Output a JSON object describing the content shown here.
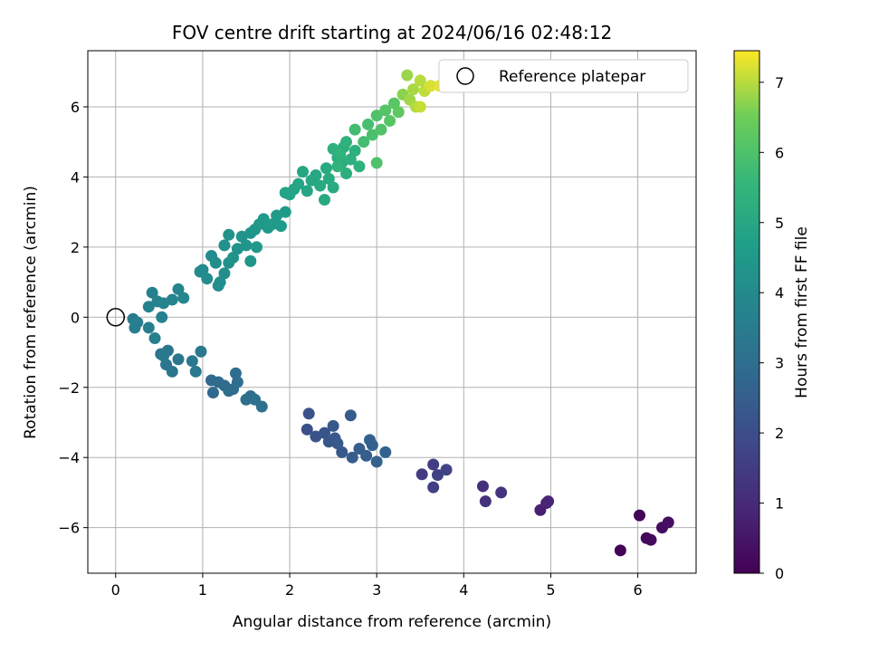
{
  "chart_data": {
    "type": "scatter",
    "title": "FOV centre drift starting at 2024/06/16 02:48:12",
    "xlabel": "Angular distance from reference (arcmin)",
    "ylabel": "Rotation from reference (arcmin)",
    "xlim": [
      -0.32,
      6.67
    ],
    "ylim": [
      -7.3,
      7.6
    ],
    "xticks": [
      0,
      1,
      2,
      3,
      4,
      5,
      6
    ],
    "yticks": [
      -6,
      -4,
      -2,
      0,
      2,
      4,
      6
    ],
    "grid": true,
    "colormap": "viridis",
    "colorbar": {
      "label": "Hours from first FF file",
      "range": [
        0,
        7.45
      ],
      "ticks": [
        0,
        1,
        2,
        3,
        4,
        5,
        6,
        7
      ]
    },
    "reference_point": {
      "label": "Reference platepar",
      "x": 0,
      "y": 0
    },
    "legend": {
      "position": "top-right",
      "entries": [
        "Reference platepar"
      ]
    },
    "series": [
      {
        "points": [
          [
            5.8,
            -6.65,
            0.05
          ],
          [
            6.02,
            -5.65,
            0.12
          ],
          [
            6.1,
            -6.3,
            0.18
          ],
          [
            6.15,
            -6.35,
            0.22
          ],
          [
            6.28,
            -6.0,
            0.28
          ],
          [
            6.35,
            -5.85,
            0.32
          ],
          [
            4.88,
            -5.5,
            0.75
          ],
          [
            4.95,
            -5.3,
            0.8
          ],
          [
            4.97,
            -5.25,
            0.85
          ],
          [
            4.22,
            -4.82,
            1.15
          ],
          [
            4.25,
            -5.25,
            1.2
          ],
          [
            4.43,
            -5.0,
            1.25
          ],
          [
            3.52,
            -4.48,
            1.5
          ],
          [
            3.65,
            -4.2,
            1.55
          ],
          [
            3.65,
            -4.85,
            1.6
          ],
          [
            3.7,
            -4.5,
            1.65
          ],
          [
            3.8,
            -4.35,
            1.7
          ],
          [
            2.2,
            -3.2,
            2.05
          ],
          [
            2.22,
            -2.75,
            2.1
          ],
          [
            2.3,
            -3.4,
            2.15
          ],
          [
            2.4,
            -3.3,
            2.2
          ],
          [
            2.45,
            -3.55,
            2.25
          ],
          [
            2.5,
            -3.1,
            2.3
          ],
          [
            2.52,
            -3.45,
            2.3
          ],
          [
            2.55,
            -3.6,
            2.35
          ],
          [
            2.6,
            -3.85,
            2.35
          ],
          [
            2.7,
            -2.8,
            2.4
          ],
          [
            2.72,
            -4.0,
            2.45
          ],
          [
            2.8,
            -3.75,
            2.5
          ],
          [
            2.88,
            -3.95,
            2.5
          ],
          [
            2.92,
            -3.5,
            2.55
          ],
          [
            2.95,
            -3.65,
            2.55
          ],
          [
            3.0,
            -4.12,
            2.6
          ],
          [
            3.1,
            -3.85,
            2.65
          ],
          [
            1.1,
            -1.8,
            2.85
          ],
          [
            1.12,
            -2.15,
            2.85
          ],
          [
            1.18,
            -1.85,
            2.9
          ],
          [
            1.25,
            -1.95,
            2.9
          ],
          [
            1.3,
            -2.1,
            2.95
          ],
          [
            1.35,
            -2.05,
            2.95
          ],
          [
            1.38,
            -1.6,
            3.0
          ],
          [
            1.4,
            -1.85,
            3.0
          ],
          [
            1.5,
            -2.35,
            3.05
          ],
          [
            1.55,
            -2.25,
            3.05
          ],
          [
            1.6,
            -2.35,
            3.1
          ],
          [
            1.68,
            -2.55,
            3.1
          ],
          [
            0.52,
            -1.05,
            3.2
          ],
          [
            0.6,
            -0.95,
            3.25
          ],
          [
            0.58,
            -1.35,
            3.25
          ],
          [
            0.65,
            -1.55,
            3.3
          ],
          [
            0.72,
            -1.2,
            3.3
          ],
          [
            0.88,
            -1.25,
            3.35
          ],
          [
            0.92,
            -1.55,
            3.35
          ],
          [
            0.98,
            -0.98,
            3.4
          ],
          [
            0.55,
            -1.1,
            3.4
          ],
          [
            0.2,
            -0.05,
            3.5
          ],
          [
            0.22,
            -0.3,
            3.55
          ],
          [
            0.25,
            -0.15,
            3.55
          ],
          [
            0.38,
            -0.3,
            3.6
          ],
          [
            0.45,
            -0.6,
            3.6
          ],
          [
            0.53,
            0.0,
            3.65
          ],
          [
            0.38,
            0.3,
            3.7
          ],
          [
            0.42,
            0.7,
            3.7
          ],
          [
            0.48,
            0.45,
            3.75
          ],
          [
            0.55,
            0.4,
            3.75
          ],
          [
            0.65,
            0.5,
            3.8
          ],
          [
            0.72,
            0.8,
            3.8
          ],
          [
            0.78,
            0.55,
            3.85
          ],
          [
            0.97,
            1.3,
            4.0
          ],
          [
            1.0,
            1.35,
            4.0
          ],
          [
            1.05,
            1.1,
            4.05
          ],
          [
            1.1,
            1.75,
            4.05
          ],
          [
            1.15,
            1.55,
            4.1
          ],
          [
            1.18,
            0.9,
            4.1
          ],
          [
            1.2,
            1.0,
            4.15
          ],
          [
            1.25,
            1.25,
            4.15
          ],
          [
            1.25,
            2.05,
            4.2
          ],
          [
            1.3,
            1.55,
            4.2
          ],
          [
            1.3,
            2.35,
            4.25
          ],
          [
            1.35,
            1.7,
            4.25
          ],
          [
            1.4,
            1.95,
            4.3
          ],
          [
            1.45,
            2.3,
            4.3
          ],
          [
            1.5,
            2.05,
            4.35
          ],
          [
            1.55,
            2.4,
            4.35
          ],
          [
            1.55,
            1.6,
            4.4
          ],
          [
            1.6,
            2.5,
            4.4
          ],
          [
            1.62,
            2.0,
            4.45
          ],
          [
            1.65,
            2.65,
            4.45
          ],
          [
            1.7,
            2.8,
            4.5
          ],
          [
            1.75,
            2.55,
            4.5
          ],
          [
            1.8,
            2.65,
            4.55
          ],
          [
            1.85,
            2.9,
            4.55
          ],
          [
            1.9,
            2.6,
            4.6
          ],
          [
            1.95,
            3.0,
            4.6
          ],
          [
            1.95,
            3.55,
            4.85
          ],
          [
            2.0,
            3.5,
            4.85
          ],
          [
            2.05,
            3.65,
            4.9
          ],
          [
            2.1,
            3.8,
            4.9
          ],
          [
            2.15,
            4.15,
            4.95
          ],
          [
            2.2,
            3.6,
            4.95
          ],
          [
            2.25,
            3.9,
            5.0
          ],
          [
            2.3,
            4.05,
            5.0
          ],
          [
            2.35,
            3.75,
            5.05
          ],
          [
            2.4,
            3.35,
            5.05
          ],
          [
            2.42,
            4.25,
            5.1
          ],
          [
            2.45,
            3.95,
            5.1
          ],
          [
            2.5,
            3.7,
            5.15
          ],
          [
            2.55,
            4.55,
            5.15
          ],
          [
            2.6,
            4.4,
            5.2
          ],
          [
            2.62,
            4.85,
            5.2
          ],
          [
            2.65,
            4.1,
            5.25
          ],
          [
            2.7,
            4.5,
            5.3
          ],
          [
            2.75,
            4.75,
            5.3
          ],
          [
            2.8,
            4.3,
            5.35
          ],
          [
            2.5,
            4.8,
            5.35
          ],
          [
            2.55,
            4.3,
            5.4
          ],
          [
            2.65,
            5.0,
            5.4
          ],
          [
            2.58,
            4.65,
            5.45
          ],
          [
            2.75,
            5.35,
            5.8
          ],
          [
            2.85,
            5.0,
            5.85
          ],
          [
            2.9,
            5.5,
            5.9
          ],
          [
            2.95,
            5.2,
            5.95
          ],
          [
            3.0,
            5.75,
            6.0
          ],
          [
            3.0,
            4.4,
            6.0
          ],
          [
            3.05,
            5.35,
            6.05
          ],
          [
            3.1,
            5.9,
            6.1
          ],
          [
            3.15,
            5.6,
            6.15
          ],
          [
            3.2,
            6.1,
            6.2
          ],
          [
            3.25,
            5.85,
            6.25
          ],
          [
            3.3,
            6.35,
            6.7
          ],
          [
            3.35,
            6.9,
            6.8
          ],
          [
            3.38,
            6.2,
            6.85
          ],
          [
            3.42,
            6.5,
            6.9
          ],
          [
            3.45,
            6.0,
            6.95
          ],
          [
            3.5,
            6.75,
            7.0
          ],
          [
            3.55,
            6.45,
            7.05
          ],
          [
            3.5,
            6.0,
            7.1
          ],
          [
            3.62,
            6.6,
            7.2
          ],
          [
            3.72,
            6.6,
            7.3
          ]
        ]
      }
    ]
  }
}
